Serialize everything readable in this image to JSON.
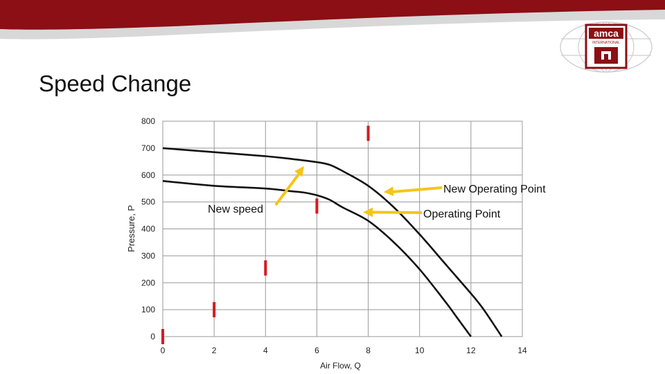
{
  "slide": {
    "title": "Speed Change",
    "logo_text": "amca",
    "logo_subtext": "INTERNATIONAL",
    "colors": {
      "banner": "#8b0f14",
      "banner_swoosh": "#dcdcdc",
      "accent_red": "#d71920",
      "arrow_yellow": "#f5c518",
      "curve": "#111111"
    }
  },
  "chart_data": {
    "type": "line",
    "xlabel": "Air Flow, Q",
    "ylabel": "Pressure, P",
    "xlim": [
      0,
      14
    ],
    "ylim": [
      0,
      800
    ],
    "xticks": [
      "0",
      "2",
      "4",
      "6",
      "8",
      "10",
      "12",
      "14"
    ],
    "yticks": [
      "0",
      "100",
      "200",
      "300",
      "400",
      "500",
      "600",
      "700",
      "800"
    ],
    "grid": true,
    "series": [
      {
        "x": [
          0,
          2,
          4,
          5,
          6,
          6.5,
          7,
          8,
          9,
          10,
          11,
          12,
          12.5,
          13.2
        ],
        "y": [
          700,
          685,
          670,
          660,
          648,
          638,
          615,
          560,
          480,
          380,
          270,
          160,
          100,
          0
        ]
      },
      {
        "x": [
          0,
          2,
          4,
          5,
          5.5,
          6,
          6.5,
          7,
          8,
          9,
          10,
          11,
          11.5,
          12
        ],
        "y": [
          578,
          560,
          550,
          540,
          535,
          525,
          508,
          480,
          430,
          350,
          250,
          130,
          65,
          0
        ]
      }
    ],
    "system_markers": [
      {
        "x": 0,
        "y": 0
      },
      {
        "x": 2,
        "y": 100
      },
      {
        "x": 4,
        "y": 255
      },
      {
        "x": 6,
        "y": 485
      },
      {
        "x": 8,
        "y": 755
      }
    ],
    "annotations": [
      {
        "text": "New Operating Point",
        "point": {
          "x": 8.6,
          "y": 537
        }
      },
      {
        "text": "Operating Point",
        "point": {
          "x": 7.8,
          "y": 462
        }
      },
      {
        "text": "New speed",
        "point": {
          "x": 5.5,
          "y": 633
        }
      }
    ]
  }
}
